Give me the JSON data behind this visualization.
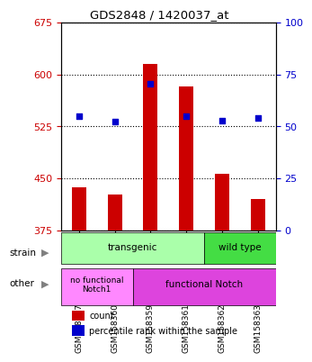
{
  "title": "GDS2848 / 1420037_at",
  "samples": [
    "GSM158357",
    "GSM158360",
    "GSM158359",
    "GSM158361",
    "GSM158362",
    "GSM158363"
  ],
  "bar_values": [
    437,
    427,
    615,
    583,
    456,
    420
  ],
  "bar_bottom": 375,
  "dot_values": [
    540,
    532,
    586,
    540,
    533,
    537
  ],
  "ylim_left": [
    375,
    675
  ],
  "ylim_right": [
    0,
    100
  ],
  "yticks_left": [
    375,
    450,
    525,
    600,
    675
  ],
  "yticks_right": [
    0,
    25,
    50,
    75,
    100
  ],
  "bar_color": "#cc0000",
  "dot_color": "#0000cc",
  "grid_color": "#000000",
  "bg_color": "#f0f0f0",
  "strain_transgenic": [
    "GSM158357",
    "GSM158360",
    "GSM158359",
    "GSM158361"
  ],
  "strain_wildtype": [
    "GSM158362",
    "GSM158363"
  ],
  "other_nofunc": [
    "GSM158357",
    "GSM158360"
  ],
  "other_func": [
    "GSM158359",
    "GSM158361",
    "GSM158362",
    "GSM158363"
  ],
  "strain_transgenic_color": "#aaffaa",
  "strain_wildtype_color": "#44dd44",
  "other_nofunc_color": "#ff88ff",
  "other_func_color": "#dd44dd",
  "legend_count_color": "#cc0000",
  "legend_dot_color": "#0000cc"
}
